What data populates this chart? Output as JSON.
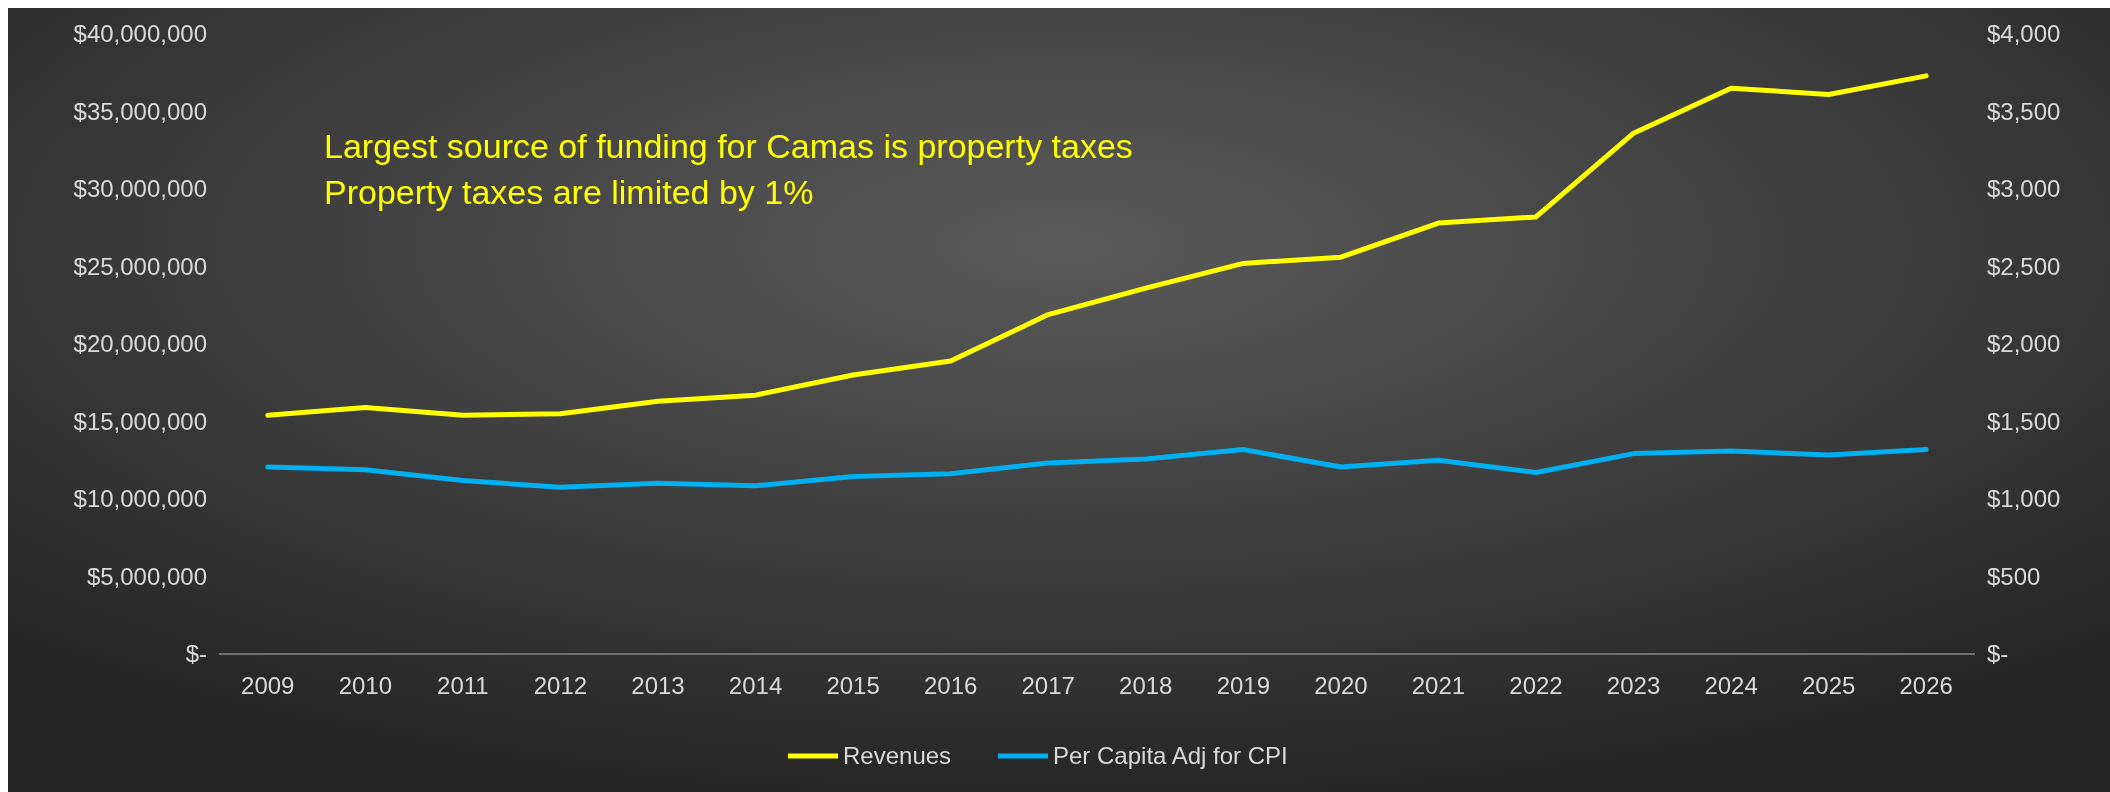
{
  "chart_data": {
    "type": "line",
    "categories": [
      "2009",
      "2010",
      "2011",
      "2012",
      "2013",
      "2014",
      "2015",
      "2016",
      "2017",
      "2018",
      "2019",
      "2020",
      "2021",
      "2022",
      "2023",
      "2024",
      "2025",
      "2026"
    ],
    "series": [
      {
        "name": "Revenues",
        "color": "#ffff00",
        "values": [
          15400000,
          15900000,
          15400000,
          15500000,
          16300000,
          16700000,
          18000000,
          18900000,
          21900000,
          23600000,
          25200000,
          25600000,
          27800000,
          28200000,
          33600000,
          36500000,
          36100000,
          37300000
        ]
      },
      {
        "name": "Per Capita Adj for CPI",
        "color": "#00b0f0",
        "axis": "y2",
        "values": [
          1206,
          1189,
          1119,
          1076,
          1102,
          1085,
          1145,
          1163,
          1232,
          1258,
          1319,
          1206,
          1250,
          1171,
          1293,
          1310,
          1284,
          1319
        ]
      }
    ],
    "ylim": [
      0,
      40000000
    ],
    "yticks": [
      {
        "value": 0,
        "label": "$-"
      },
      {
        "value": 5000000,
        "label": "$5,000,000"
      },
      {
        "value": 10000000,
        "label": "$10,000,000"
      },
      {
        "value": 15000000,
        "label": "$15,000,000"
      },
      {
        "value": 20000000,
        "label": "$20,000,000"
      },
      {
        "value": 25000000,
        "label": "$25,000,000"
      },
      {
        "value": 30000000,
        "label": "$30,000,000"
      },
      {
        "value": 35000000,
        "label": "$35,000,000"
      },
      {
        "value": 40000000,
        "label": "$40,000,000"
      }
    ],
    "y2lim": [
      0,
      4000
    ],
    "y2ticks": [
      {
        "value": 0,
        "label": "$-"
      },
      {
        "value": 500,
        "label": "$500"
      },
      {
        "value": 1000,
        "label": "$1,000"
      },
      {
        "value": 1500,
        "label": "$1,500"
      },
      {
        "value": 2000,
        "label": "$2,000"
      },
      {
        "value": 2500,
        "label": "$2,500"
      },
      {
        "value": 3000,
        "label": "$3,000"
      },
      {
        "value": 3500,
        "label": "$3,500"
      },
      {
        "value": 4000,
        "label": "$4,000"
      }
    ],
    "annotations": [
      "Largest source of funding for Camas is property taxes",
      "Property taxes are limited by 1%"
    ],
    "legend": "bottom",
    "grid": false,
    "marker": "none",
    "line_style": "solid"
  }
}
